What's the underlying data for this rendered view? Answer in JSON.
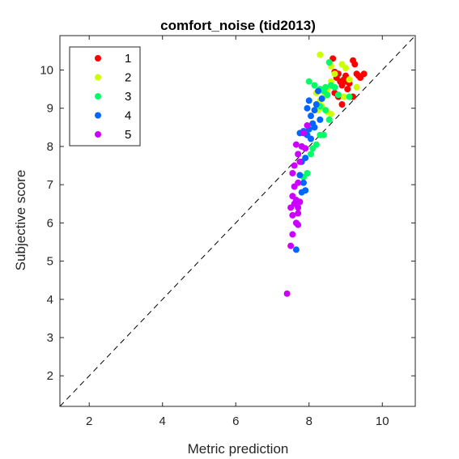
{
  "chart_data": {
    "type": "scatter",
    "title": "comfort_noise (tid2013)",
    "xlabel": "Metric prediction",
    "ylabel": "Subjective score",
    "xlim": [
      1.2,
      10.9
    ],
    "ylim": [
      1.2,
      10.9
    ],
    "xticks": [
      2,
      4,
      6,
      8,
      10
    ],
    "yticks": [
      2,
      3,
      4,
      5,
      6,
      7,
      8,
      9,
      10
    ],
    "grid": false,
    "legend_position": "top-left",
    "reference_line": "identity (dashed)",
    "series": [
      {
        "name": "1",
        "color": "#ff0000",
        "points": [
          [
            8.65,
            10.3
          ],
          [
            8.7,
            9.95
          ],
          [
            8.75,
            9.8
          ],
          [
            8.8,
            9.9
          ],
          [
            8.85,
            9.7
          ],
          [
            8.9,
            9.6
          ],
          [
            8.95,
            9.75
          ],
          [
            9.0,
            9.85
          ],
          [
            9.05,
            9.5
          ],
          [
            9.1,
            9.65
          ],
          [
            9.2,
            10.25
          ],
          [
            9.25,
            10.15
          ],
          [
            9.3,
            9.9
          ],
          [
            9.35,
            9.85
          ],
          [
            9.4,
            9.8
          ],
          [
            9.5,
            9.9
          ],
          [
            8.7,
            9.4
          ],
          [
            8.8,
            9.3
          ],
          [
            8.9,
            9.1
          ],
          [
            9.2,
            9.3
          ],
          [
            9.0,
            9.7
          ],
          [
            8.6,
            9.6
          ]
        ]
      },
      {
        "name": "2",
        "color": "#ccff00",
        "points": [
          [
            8.3,
            10.4
          ],
          [
            8.6,
            10.1
          ],
          [
            8.9,
            10.15
          ],
          [
            9.0,
            10.05
          ],
          [
            8.7,
            9.9
          ],
          [
            8.6,
            9.7
          ],
          [
            9.1,
            9.75
          ],
          [
            8.5,
            9.5
          ],
          [
            8.4,
            9.3
          ],
          [
            8.3,
            9.2
          ],
          [
            8.25,
            8.95
          ],
          [
            8.5,
            8.9
          ],
          [
            8.6,
            8.85
          ],
          [
            8.2,
            9.4
          ],
          [
            9.3,
            9.55
          ],
          [
            8.95,
            9.3
          ],
          [
            8.35,
            9.05
          ]
        ]
      },
      {
        "name": "3",
        "color": "#00ff66",
        "points": [
          [
            8.55,
            10.2
          ],
          [
            8.0,
            9.7
          ],
          [
            8.15,
            9.6
          ],
          [
            8.3,
            9.5
          ],
          [
            8.45,
            9.55
          ],
          [
            8.6,
            9.6
          ],
          [
            8.7,
            9.55
          ],
          [
            8.5,
            9.35
          ],
          [
            8.3,
            9.05
          ],
          [
            8.45,
            8.95
          ],
          [
            8.55,
            8.7
          ],
          [
            8.3,
            8.3
          ],
          [
            8.4,
            8.3
          ],
          [
            8.2,
            8.05
          ],
          [
            8.1,
            7.95
          ],
          [
            8.05,
            7.8
          ],
          [
            7.95,
            7.3
          ],
          [
            7.85,
            7.2
          ],
          [
            8.8,
            9.35
          ],
          [
            9.1,
            9.3
          ],
          [
            8.4,
            9.45
          ]
        ]
      },
      {
        "name": "4",
        "color": "#0066ff",
        "points": [
          [
            8.0,
            9.2
          ],
          [
            7.95,
            9.0
          ],
          [
            8.05,
            8.8
          ],
          [
            8.15,
            8.95
          ],
          [
            8.2,
            9.1
          ],
          [
            8.25,
            9.45
          ],
          [
            8.35,
            9.25
          ],
          [
            8.1,
            8.6
          ],
          [
            8.0,
            8.45
          ],
          [
            7.95,
            8.3
          ],
          [
            7.85,
            8.4
          ],
          [
            7.75,
            8.35
          ],
          [
            8.05,
            8.2
          ],
          [
            7.9,
            7.7
          ],
          [
            7.8,
            7.6
          ],
          [
            7.75,
            7.25
          ],
          [
            7.85,
            7.05
          ],
          [
            7.8,
            6.8
          ],
          [
            7.9,
            6.85
          ],
          [
            7.65,
            5.3
          ],
          [
            8.3,
            8.7
          ],
          [
            8.15,
            8.5
          ]
        ]
      },
      {
        "name": "5",
        "color": "#cc00ff",
        "points": [
          [
            7.95,
            8.55
          ],
          [
            7.85,
            8.35
          ],
          [
            7.9,
            7.95
          ],
          [
            7.8,
            8.0
          ],
          [
            7.7,
            7.8
          ],
          [
            7.65,
            8.05
          ],
          [
            7.6,
            7.5
          ],
          [
            7.75,
            7.6
          ],
          [
            7.55,
            7.3
          ],
          [
            7.7,
            7.05
          ],
          [
            7.6,
            6.95
          ],
          [
            7.55,
            6.7
          ],
          [
            7.65,
            6.6
          ],
          [
            7.7,
            6.4
          ],
          [
            7.5,
            6.4
          ],
          [
            7.55,
            6.2
          ],
          [
            7.6,
            6.5
          ],
          [
            7.65,
            6.0
          ],
          [
            7.7,
            5.95
          ],
          [
            7.55,
            5.7
          ],
          [
            7.5,
            5.4
          ],
          [
            7.4,
            4.15
          ],
          [
            7.75,
            6.55
          ],
          [
            7.7,
            6.25
          ]
        ]
      }
    ]
  }
}
